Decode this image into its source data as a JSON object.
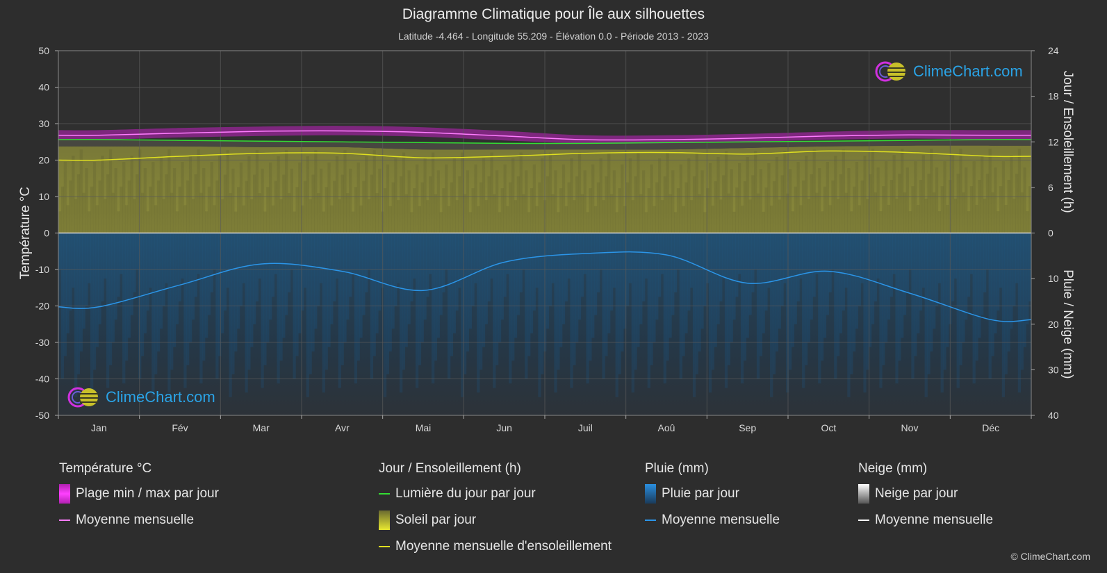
{
  "title": "Diagramme Climatique pour Île aux silhouettes",
  "subtitle": "Latitude -4.464 - Longitude 55.209 - Élévation 0.0 - Période 2013 - 2023",
  "brand": "ClimeChart.com",
  "copyright": "© ClimeChart.com",
  "colors": {
    "background": "#2d2d2d",
    "temp_range": "#e020e0",
    "temp_mean": "#ff7dff",
    "daylight": "#33dd33",
    "sunshine_fill": "#8a8a3a",
    "sunshine_mean": "#e0e020",
    "rain_fill": "#1f5f8f",
    "rain_mean": "#2b95e8",
    "snow_mean": "#ffffff"
  },
  "legend": {
    "temperature": {
      "title": "Température °C",
      "items": [
        "Plage min / max par jour",
        "Moyenne mensuelle"
      ]
    },
    "sun": {
      "title": "Jour / Ensoleillement (h)",
      "items": [
        "Lumière du jour par jour",
        "Soleil par jour",
        "Moyenne mensuelle d'ensoleillement"
      ]
    },
    "rain": {
      "title": "Pluie (mm)",
      "items": [
        "Pluie par jour",
        "Moyenne mensuelle"
      ]
    },
    "snow": {
      "title": "Neige (mm)",
      "items": [
        "Neige par jour",
        "Moyenne mensuelle"
      ]
    }
  },
  "chart_data": {
    "type": "line",
    "categories": [
      "Jan",
      "Fév",
      "Mar",
      "Avr",
      "Mai",
      "Jun",
      "Juil",
      "Aoû",
      "Sep",
      "Oct",
      "Nov",
      "Déc"
    ],
    "y_left": {
      "label": "Température °C",
      "range": [
        -50,
        50
      ],
      "ticks": [
        50,
        40,
        30,
        20,
        10,
        0,
        -10,
        -20,
        -30,
        -40,
        -50
      ]
    },
    "y_right_top": {
      "label": "Jour / Ensoleillement (h)",
      "range": [
        0,
        24
      ],
      "ticks": [
        24,
        18,
        12,
        6,
        0
      ]
    },
    "y_right_bottom": {
      "label": "Pluie / Neige (mm)",
      "range": [
        0,
        40
      ],
      "ticks": [
        0,
        10,
        20,
        30,
        40
      ]
    },
    "grid": true,
    "series": [
      {
        "name": "Moyenne mensuelle",
        "group": "temperature",
        "axis": "temp",
        "values": [
          26.8,
          27.4,
          27.9,
          28.0,
          27.6,
          26.6,
          25.6,
          25.6,
          26.0,
          26.6,
          26.9,
          26.8
        ]
      },
      {
        "name": "Plage min / max par jour",
        "group": "temperature",
        "axis": "temp",
        "min": [
          25.6,
          26.2,
          26.6,
          26.8,
          26.4,
          25.4,
          24.6,
          24.6,
          25.0,
          25.6,
          25.9,
          25.6
        ],
        "max": [
          28.2,
          28.8,
          29.2,
          29.4,
          29.0,
          28.0,
          26.8,
          26.8,
          27.2,
          27.8,
          28.2,
          28.2
        ]
      },
      {
        "name": "Lumière du jour par jour",
        "group": "sun",
        "axis": "hours",
        "values": [
          12.3,
          12.2,
          12.1,
          12.0,
          11.9,
          11.8,
          11.8,
          11.9,
          12.0,
          12.1,
          12.2,
          12.3
        ]
      },
      {
        "name": "Soleil par jour",
        "group": "sun",
        "axis": "hours",
        "values": [
          11.4,
          11.4,
          11.3,
          11.3,
          11.0,
          11.0,
          11.0,
          11.0,
          11.2,
          11.4,
          11.5,
          11.5
        ]
      },
      {
        "name": "Moyenne mensuelle d'ensoleillement",
        "group": "sun",
        "axis": "hours",
        "values": [
          9.6,
          10.1,
          10.5,
          10.5,
          9.9,
          10.1,
          10.5,
          10.6,
          10.4,
          10.8,
          10.6,
          10.1
        ]
      },
      {
        "name": "Moyenne mensuelle",
        "group": "rain",
        "axis": "mm",
        "values": [
          16.2,
          11.4,
          6.8,
          8.4,
          12.6,
          6.4,
          4.5,
          4.8,
          11.0,
          8.4,
          13.2,
          19.0
        ]
      }
    ]
  }
}
